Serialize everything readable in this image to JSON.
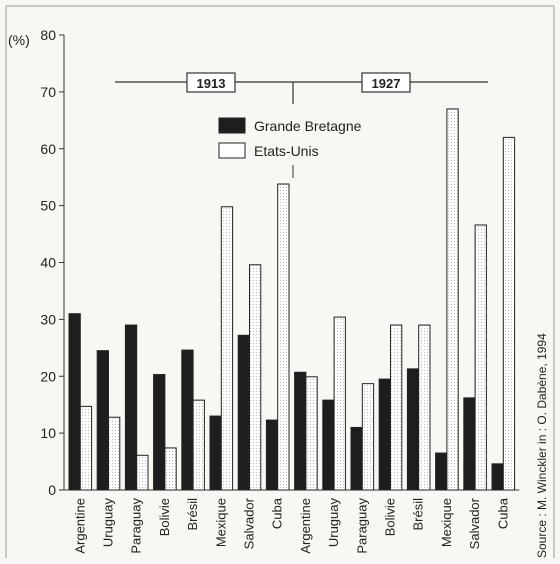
{
  "chart_data": {
    "type": "bar",
    "ylabel": "(%)",
    "ylim": [
      0,
      80
    ],
    "yticks": [
      0,
      10,
      20,
      30,
      40,
      50,
      60,
      70,
      80
    ],
    "grid": false,
    "legend_position": "top-center",
    "periods": [
      "1913",
      "1927"
    ],
    "categories": [
      "Argentine",
      "Uruguay",
      "Paraguay",
      "Bolivie",
      "Brésil",
      "Mexique",
      "Salvador",
      "Cuba",
      "Argentine",
      "Uruguay",
      "Paraguay",
      "Bolivie",
      "Brésil",
      "Mexique",
      "Salvador",
      "Cuba"
    ],
    "series": [
      {
        "name": "Grande Bretagne",
        "color": "#1e1e1e",
        "values": [
          31,
          24.5,
          29,
          20.3,
          24.6,
          13,
          27.2,
          12.3,
          20.7,
          15.8,
          11,
          19.5,
          21.3,
          6.5,
          16.2,
          4.6
        ]
      },
      {
        "name": "Etats-Unis",
        "color": "#ffffff",
        "values": [
          14.7,
          12.8,
          6.1,
          7.4,
          15.8,
          49.8,
          39.6,
          53.8,
          19.9,
          30.4,
          18.7,
          29,
          29,
          67,
          46.6,
          62
        ]
      }
    ],
    "source": "Source : M. Winckler in : O. Dabène, 1994"
  }
}
